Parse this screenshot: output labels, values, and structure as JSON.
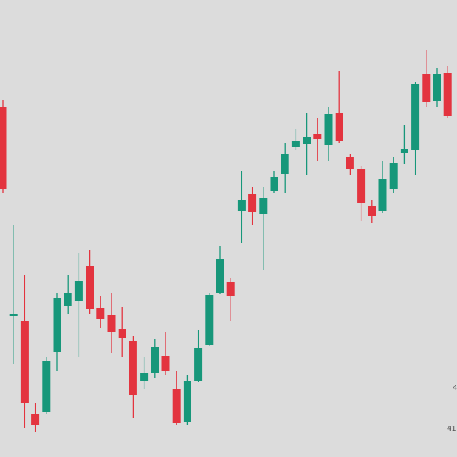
{
  "chart_data": {
    "type": "candlestick",
    "categories": [
      null,
      null,
      null,
      null,
      null,
      null,
      null,
      null,
      null,
      null,
      null,
      null,
      null,
      null,
      null,
      null,
      null,
      null,
      null,
      null,
      null,
      null,
      null,
      null,
      null,
      null,
      null,
      null,
      null,
      null,
      null,
      null,
      null,
      null,
      null,
      null,
      null,
      null,
      null,
      null,
      null,
      null
    ],
    "open": [
      490,
      197,
      190,
      60,
      63,
      147,
      212,
      218,
      268,
      208,
      199,
      179,
      162,
      107,
      118,
      142,
      95,
      49,
      107,
      157,
      230,
      245,
      345,
      368,
      341,
      373,
      396,
      434,
      439,
      453,
      437,
      482,
      420,
      403,
      351,
      345,
      375,
      426,
      430,
      536,
      498,
      538
    ],
    "high": [
      500,
      325,
      255,
      75,
      140,
      230,
      255,
      285,
      290,
      225,
      230,
      210,
      170,
      140,
      165,
      175,
      120,
      115,
      178,
      230,
      295,
      250,
      400,
      378,
      378,
      400,
      440,
      460,
      482,
      475,
      490,
      540,
      425,
      408,
      360,
      415,
      420,
      465,
      525,
      570,
      545,
      548
    ],
    "low": [
      370,
      130,
      40,
      35,
      60,
      120,
      200,
      140,
      200,
      180,
      145,
      140,
      55,
      95,
      110,
      115,
      45,
      45,
      105,
      155,
      228,
      190,
      300,
      325,
      262,
      370,
      370,
      430,
      395,
      415,
      415,
      440,
      395,
      330,
      328,
      342,
      370,
      410,
      395,
      490,
      490,
      475
    ],
    "close": [
      375,
      200,
      75,
      45,
      135,
      222,
      230,
      246,
      207,
      193,
      175,
      167,
      87,
      117,
      154,
      120,
      47,
      107,
      152,
      227,
      277,
      226,
      360,
      343,
      363,
      392,
      424,
      443,
      448,
      445,
      480,
      443,
      403,
      356,
      337,
      390,
      412,
      432,
      522,
      497,
      537,
      478
    ],
    "up_color": "#17977a",
    "down_color": "#e3343f",
    "ylim": [
      0,
      640
    ],
    "annotations": [
      "4",
      "41"
    ]
  }
}
